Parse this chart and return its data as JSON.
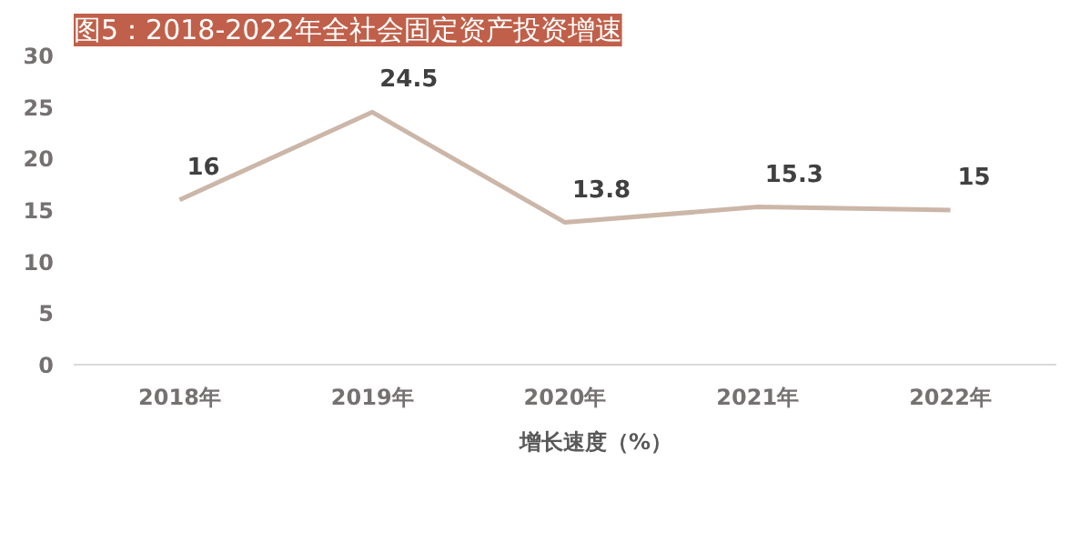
{
  "chart_data": {
    "type": "line",
    "title": "图5：2018-2022年全社会固定资产投资增速",
    "categories": [
      "2018年",
      "2019年",
      "2020年",
      "2021年",
      "2022年"
    ],
    "series": [
      {
        "name": "增长速度（%）",
        "color": "#cbb6a8",
        "values": [
          16,
          24.5,
          13.8,
          15.3,
          15
        ]
      }
    ],
    "ylim": [
      0,
      30
    ],
    "yticks": [
      0,
      5,
      10,
      15,
      20,
      25,
      30
    ],
    "grid": false,
    "legend": "bottom",
    "data_labels": true,
    "marker": "none",
    "line_style": "solid"
  }
}
